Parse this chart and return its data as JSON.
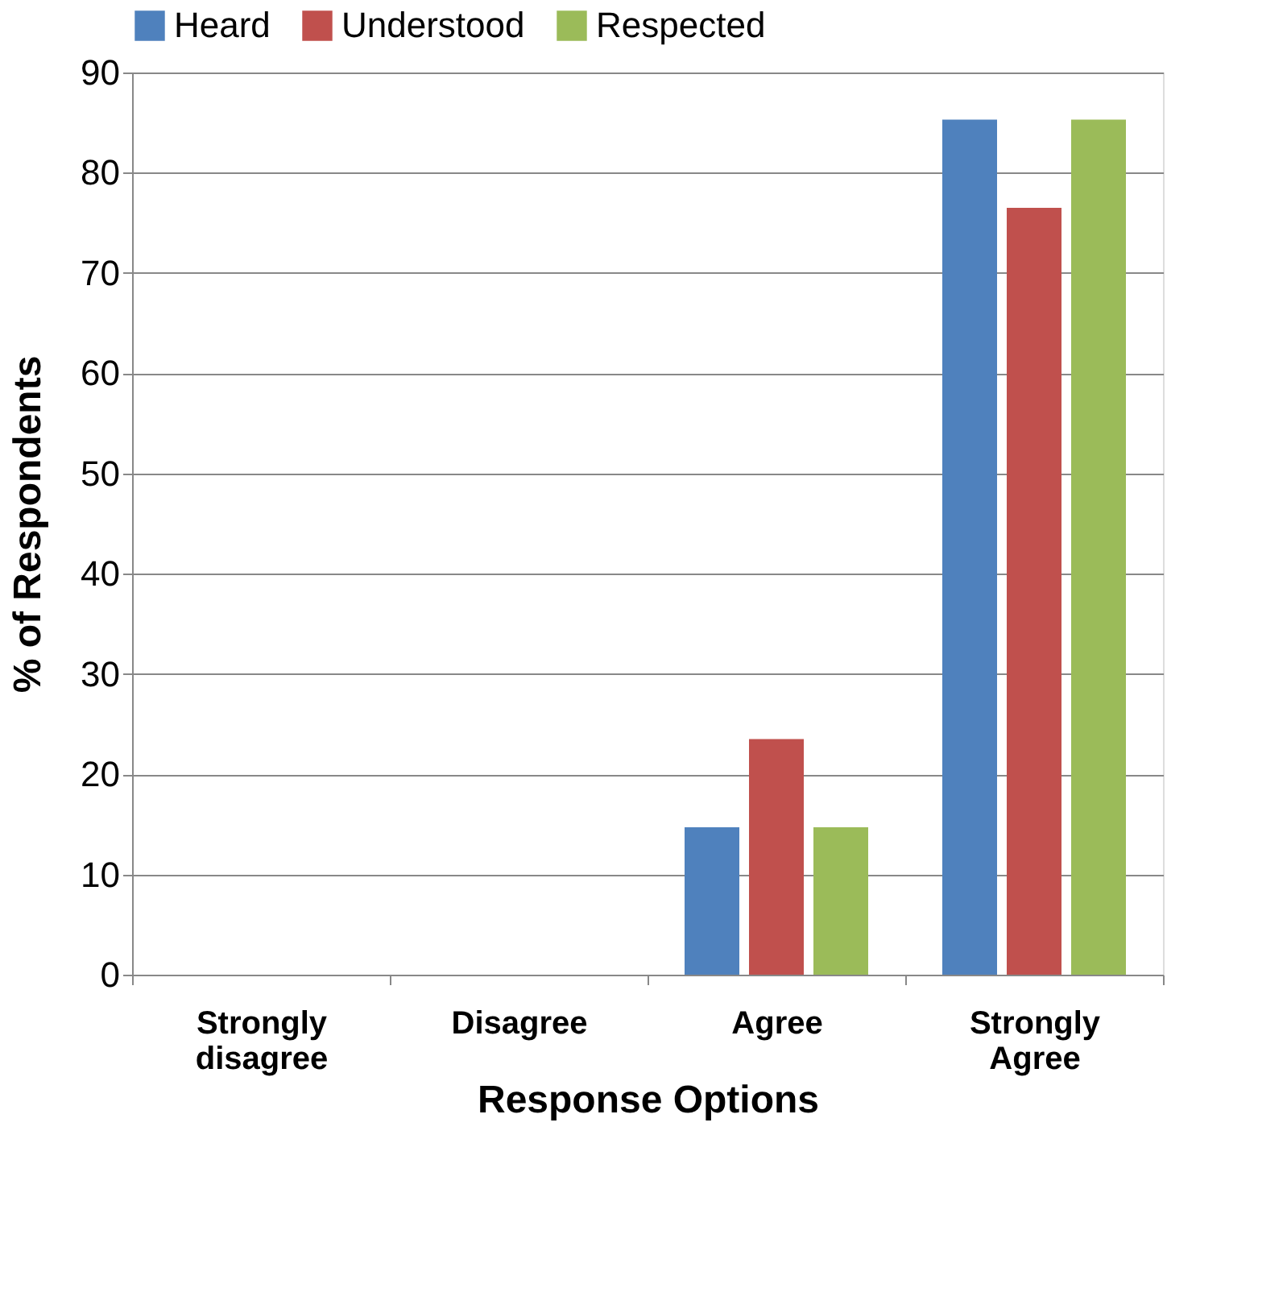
{
  "chart_data": {
    "type": "bar",
    "xlabel": "Response Options",
    "ylabel": "% of Respondents",
    "categories": [
      "Strongly disagree",
      "Disagree",
      "Agree",
      "Strongly Agree"
    ],
    "series": [
      {
        "name": "Heard",
        "color": "#4f81bd",
        "values": [
          0,
          0,
          14.7,
          85.3
        ]
      },
      {
        "name": "Understood",
        "color": "#c0504d",
        "values": [
          0,
          0,
          23.5,
          76.5
        ]
      },
      {
        "name": "Respected",
        "color": "#9bbb59",
        "values": [
          0,
          0,
          14.7,
          85.3
        ]
      }
    ],
    "ylim": [
      0,
      90
    ],
    "yticks": [
      0,
      10,
      20,
      30,
      40,
      50,
      60,
      70,
      80,
      90
    ],
    "grid": "y",
    "legend": "top"
  }
}
